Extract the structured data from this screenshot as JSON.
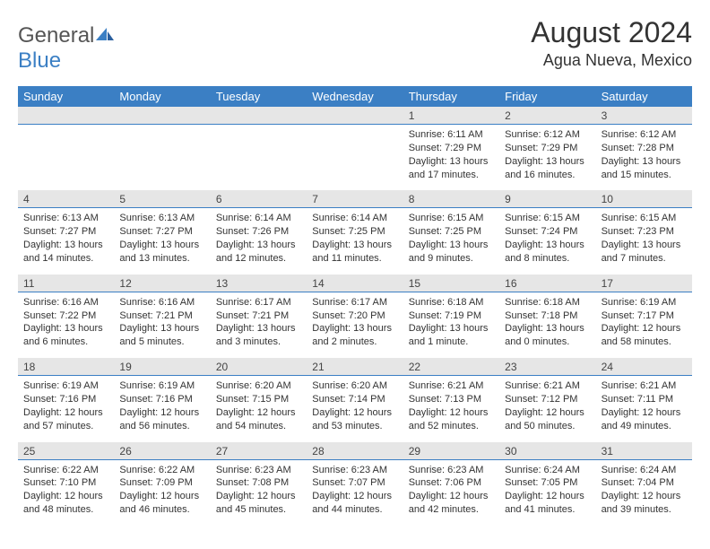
{
  "brand": {
    "part1": "General",
    "part2": "Blue"
  },
  "title": "August 2024",
  "location": "Agua Nueva, Mexico",
  "colors": {
    "header_bg": "#3b7fc4",
    "header_text": "#ffffff",
    "daynum_bg": "#e6e6e6",
    "daynum_border": "#3b7fc4",
    "body_text": "#333333",
    "logo_gray": "#555555",
    "logo_blue": "#3b7fc4"
  },
  "day_names": [
    "Sunday",
    "Monday",
    "Tuesday",
    "Wednesday",
    "Thursday",
    "Friday",
    "Saturday"
  ],
  "weeks": [
    [
      {
        "n": "",
        "sr": "",
        "ss": "",
        "dl": ""
      },
      {
        "n": "",
        "sr": "",
        "ss": "",
        "dl": ""
      },
      {
        "n": "",
        "sr": "",
        "ss": "",
        "dl": ""
      },
      {
        "n": "",
        "sr": "",
        "ss": "",
        "dl": ""
      },
      {
        "n": "1",
        "sr": "Sunrise: 6:11 AM",
        "ss": "Sunset: 7:29 PM",
        "dl": "Daylight: 13 hours and 17 minutes."
      },
      {
        "n": "2",
        "sr": "Sunrise: 6:12 AM",
        "ss": "Sunset: 7:29 PM",
        "dl": "Daylight: 13 hours and 16 minutes."
      },
      {
        "n": "3",
        "sr": "Sunrise: 6:12 AM",
        "ss": "Sunset: 7:28 PM",
        "dl": "Daylight: 13 hours and 15 minutes."
      }
    ],
    [
      {
        "n": "4",
        "sr": "Sunrise: 6:13 AM",
        "ss": "Sunset: 7:27 PM",
        "dl": "Daylight: 13 hours and 14 minutes."
      },
      {
        "n": "5",
        "sr": "Sunrise: 6:13 AM",
        "ss": "Sunset: 7:27 PM",
        "dl": "Daylight: 13 hours and 13 minutes."
      },
      {
        "n": "6",
        "sr": "Sunrise: 6:14 AM",
        "ss": "Sunset: 7:26 PM",
        "dl": "Daylight: 13 hours and 12 minutes."
      },
      {
        "n": "7",
        "sr": "Sunrise: 6:14 AM",
        "ss": "Sunset: 7:25 PM",
        "dl": "Daylight: 13 hours and 11 minutes."
      },
      {
        "n": "8",
        "sr": "Sunrise: 6:15 AM",
        "ss": "Sunset: 7:25 PM",
        "dl": "Daylight: 13 hours and 9 minutes."
      },
      {
        "n": "9",
        "sr": "Sunrise: 6:15 AM",
        "ss": "Sunset: 7:24 PM",
        "dl": "Daylight: 13 hours and 8 minutes."
      },
      {
        "n": "10",
        "sr": "Sunrise: 6:15 AM",
        "ss": "Sunset: 7:23 PM",
        "dl": "Daylight: 13 hours and 7 minutes."
      }
    ],
    [
      {
        "n": "11",
        "sr": "Sunrise: 6:16 AM",
        "ss": "Sunset: 7:22 PM",
        "dl": "Daylight: 13 hours and 6 minutes."
      },
      {
        "n": "12",
        "sr": "Sunrise: 6:16 AM",
        "ss": "Sunset: 7:21 PM",
        "dl": "Daylight: 13 hours and 5 minutes."
      },
      {
        "n": "13",
        "sr": "Sunrise: 6:17 AM",
        "ss": "Sunset: 7:21 PM",
        "dl": "Daylight: 13 hours and 3 minutes."
      },
      {
        "n": "14",
        "sr": "Sunrise: 6:17 AM",
        "ss": "Sunset: 7:20 PM",
        "dl": "Daylight: 13 hours and 2 minutes."
      },
      {
        "n": "15",
        "sr": "Sunrise: 6:18 AM",
        "ss": "Sunset: 7:19 PM",
        "dl": "Daylight: 13 hours and 1 minute."
      },
      {
        "n": "16",
        "sr": "Sunrise: 6:18 AM",
        "ss": "Sunset: 7:18 PM",
        "dl": "Daylight: 13 hours and 0 minutes."
      },
      {
        "n": "17",
        "sr": "Sunrise: 6:19 AM",
        "ss": "Sunset: 7:17 PM",
        "dl": "Daylight: 12 hours and 58 minutes."
      }
    ],
    [
      {
        "n": "18",
        "sr": "Sunrise: 6:19 AM",
        "ss": "Sunset: 7:16 PM",
        "dl": "Daylight: 12 hours and 57 minutes."
      },
      {
        "n": "19",
        "sr": "Sunrise: 6:19 AM",
        "ss": "Sunset: 7:16 PM",
        "dl": "Daylight: 12 hours and 56 minutes."
      },
      {
        "n": "20",
        "sr": "Sunrise: 6:20 AM",
        "ss": "Sunset: 7:15 PM",
        "dl": "Daylight: 12 hours and 54 minutes."
      },
      {
        "n": "21",
        "sr": "Sunrise: 6:20 AM",
        "ss": "Sunset: 7:14 PM",
        "dl": "Daylight: 12 hours and 53 minutes."
      },
      {
        "n": "22",
        "sr": "Sunrise: 6:21 AM",
        "ss": "Sunset: 7:13 PM",
        "dl": "Daylight: 12 hours and 52 minutes."
      },
      {
        "n": "23",
        "sr": "Sunrise: 6:21 AM",
        "ss": "Sunset: 7:12 PM",
        "dl": "Daylight: 12 hours and 50 minutes."
      },
      {
        "n": "24",
        "sr": "Sunrise: 6:21 AM",
        "ss": "Sunset: 7:11 PM",
        "dl": "Daylight: 12 hours and 49 minutes."
      }
    ],
    [
      {
        "n": "25",
        "sr": "Sunrise: 6:22 AM",
        "ss": "Sunset: 7:10 PM",
        "dl": "Daylight: 12 hours and 48 minutes."
      },
      {
        "n": "26",
        "sr": "Sunrise: 6:22 AM",
        "ss": "Sunset: 7:09 PM",
        "dl": "Daylight: 12 hours and 46 minutes."
      },
      {
        "n": "27",
        "sr": "Sunrise: 6:23 AM",
        "ss": "Sunset: 7:08 PM",
        "dl": "Daylight: 12 hours and 45 minutes."
      },
      {
        "n": "28",
        "sr": "Sunrise: 6:23 AM",
        "ss": "Sunset: 7:07 PM",
        "dl": "Daylight: 12 hours and 44 minutes."
      },
      {
        "n": "29",
        "sr": "Sunrise: 6:23 AM",
        "ss": "Sunset: 7:06 PM",
        "dl": "Daylight: 12 hours and 42 minutes."
      },
      {
        "n": "30",
        "sr": "Sunrise: 6:24 AM",
        "ss": "Sunset: 7:05 PM",
        "dl": "Daylight: 12 hours and 41 minutes."
      },
      {
        "n": "31",
        "sr": "Sunrise: 6:24 AM",
        "ss": "Sunset: 7:04 PM",
        "dl": "Daylight: 12 hours and 39 minutes."
      }
    ]
  ]
}
